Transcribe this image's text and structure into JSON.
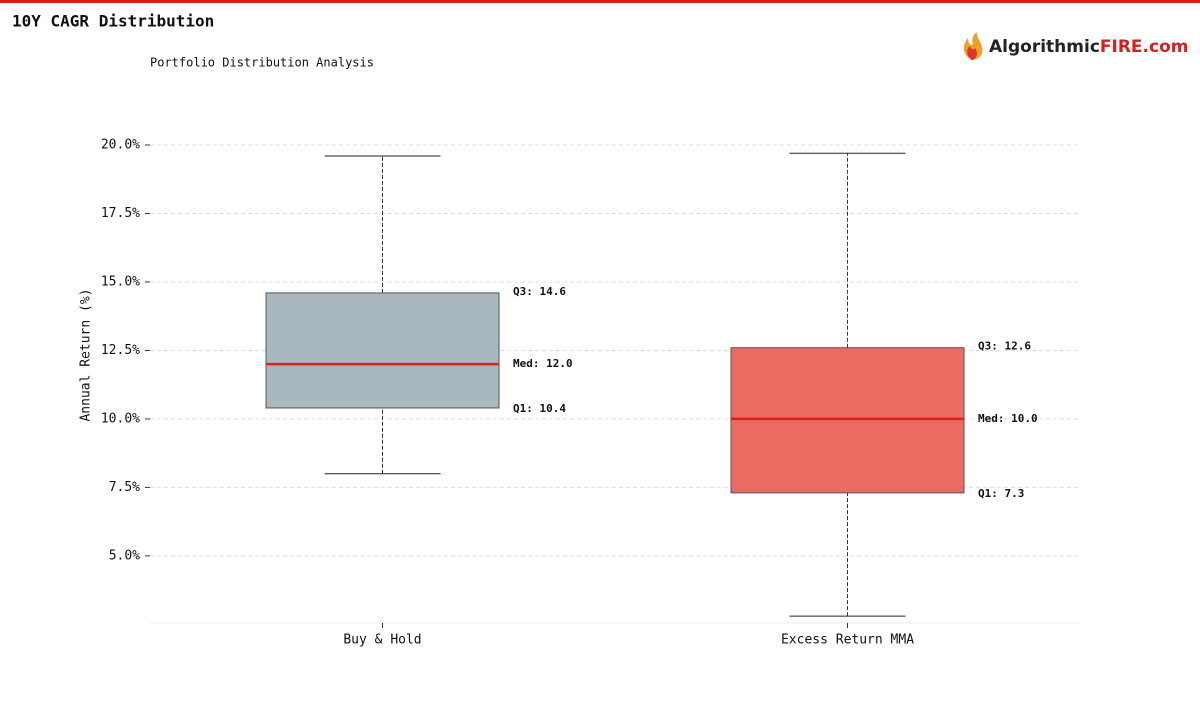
{
  "header": {
    "title": "10Y CAGR Distribution",
    "logo_text": "Algorithmic",
    "logo_accent": "FIRE.com"
  },
  "chart_data": {
    "type": "box",
    "subtitle": "Portfolio Distribution Analysis",
    "ylabel": "Annual Return (%)",
    "categories": [
      "Buy & Hold",
      "Excess Return MMA"
    ],
    "series": [
      {
        "color": "#a9b8bf",
        "whisker_low": 8.0,
        "q1": 10.4,
        "median": 12.0,
        "q3": 14.6,
        "whisker_high": 19.6,
        "value_labels": {
          "q1": "Q1: 10.4",
          "median": "Med: 12.0",
          "q3": "Q3: 14.6"
        }
      },
      {
        "color": "#eb6b63",
        "whisker_low": 2.8,
        "q1": 7.3,
        "median": 10.0,
        "q3": 12.6,
        "whisker_high": 19.7,
        "value_labels": {
          "q1": "Q1: 7.3",
          "median": "Med: 10.0",
          "q3": "Q3: 12.6"
        }
      }
    ],
    "median_color": "#e0201a",
    "ylim": [
      2.55,
      20.73
    ],
    "yticks": [
      {
        "value": 5,
        "label": "5.0%"
      },
      {
        "value": 7.5,
        "label": "7.5%"
      },
      {
        "value": 10,
        "label": "10.0%"
      },
      {
        "value": 12.5,
        "label": "12.5%"
      },
      {
        "value": 15,
        "label": "15.0%"
      },
      {
        "value": 17.5,
        "label": "17.5%"
      },
      {
        "value": 20,
        "label": "20.0%"
      }
    ],
    "grid": true
  }
}
